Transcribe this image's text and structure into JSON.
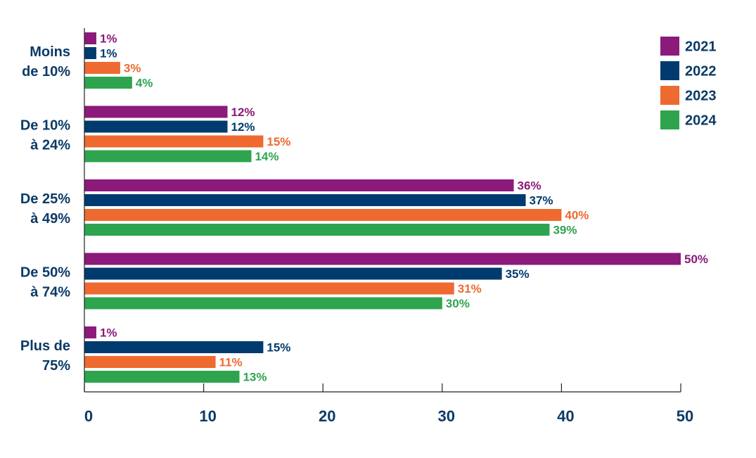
{
  "chart_data": {
    "type": "bar",
    "orientation": "horizontal",
    "categories": [
      [
        "Moins",
        "de 10%"
      ],
      [
        "De 10%",
        "à 24%"
      ],
      [
        "De 25%",
        "à 49%"
      ],
      [
        "De 50%",
        "à 74%"
      ],
      [
        "Plus de",
        "75%"
      ]
    ],
    "series": [
      {
        "name": "2021",
        "color": "#8b1a7a",
        "values": [
          1,
          12,
          36,
          50,
          1
        ],
        "labels": [
          "1%",
          "12%",
          "36%",
          "50%",
          "1%"
        ]
      },
      {
        "name": "2022",
        "color": "#003b6f",
        "values": [
          1,
          12,
          37,
          35,
          15
        ],
        "labels": [
          "1%",
          "12%",
          "37%",
          "35%",
          "15%"
        ]
      },
      {
        "name": "2023",
        "color": "#ee6a30",
        "values": [
          3,
          15,
          40,
          31,
          11
        ],
        "labels": [
          "3%",
          "15%",
          "40%",
          "31%",
          "11%"
        ]
      },
      {
        "name": "2024",
        "color": "#2ea44f",
        "values": [
          4,
          14,
          39,
          30,
          13
        ],
        "labels": [
          "4%",
          "14%",
          "39%",
          "30%",
          "13%"
        ]
      }
    ],
    "xlim": [
      0,
      50
    ],
    "xticks": [
      0,
      10,
      20,
      30,
      40,
      50
    ],
    "xtick_labels": [
      "0",
      "10",
      "20",
      "30",
      "40",
      "50"
    ],
    "grid": false,
    "legend_position": "top-right",
    "title": "",
    "xlabel": "",
    "ylabel": ""
  }
}
